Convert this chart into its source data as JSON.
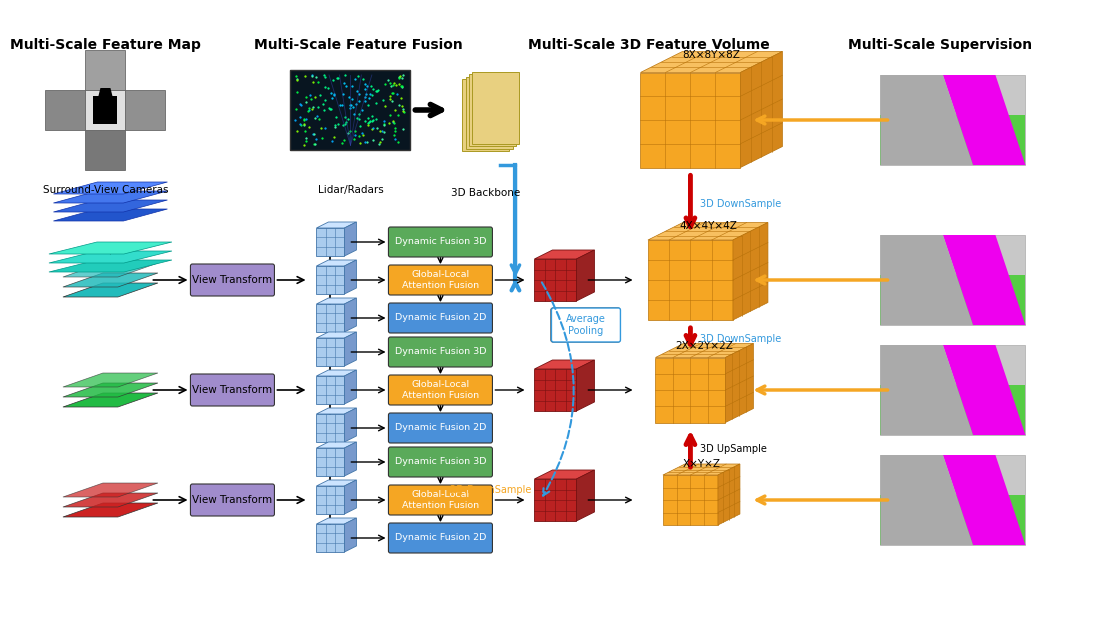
{
  "title_sections": [
    "Multi-Scale Feature Map",
    "Multi-Scale Feature Fusion",
    "Multi-Scale 3D Feature Volume",
    "Multi-Scale Supervision"
  ],
  "bg_color": "#ffffff",
  "box_green": "#5aaa5a",
  "box_orange": "#f5a623",
  "box_blue": "#4a90d9",
  "box_purple": "#a08ccc",
  "scale_labels": [
    "8X×8Y×8Z",
    "4X×4Y×4Z",
    "2X×2Y×2Z",
    "X×Y×Z"
  ],
  "fusion_labels_3d": "Dynamic Fusion 3D",
  "fusion_labels_gl": "Global-Local\nAttention Fusion",
  "fusion_labels_2d": "Dynamic Fusion 2D",
  "view_transform_label": "View Transform",
  "avg_pool_label": "Average\nPooling",
  "backbone_label": "3D Backbone",
  "lidar_label": "Lidar/Radars",
  "camera_label": "Surround-View Cameras",
  "ds3d_label": "3D DownSample",
  "us3d_label": "3D UpSample",
  "ds2d_label": "2D DownSample"
}
